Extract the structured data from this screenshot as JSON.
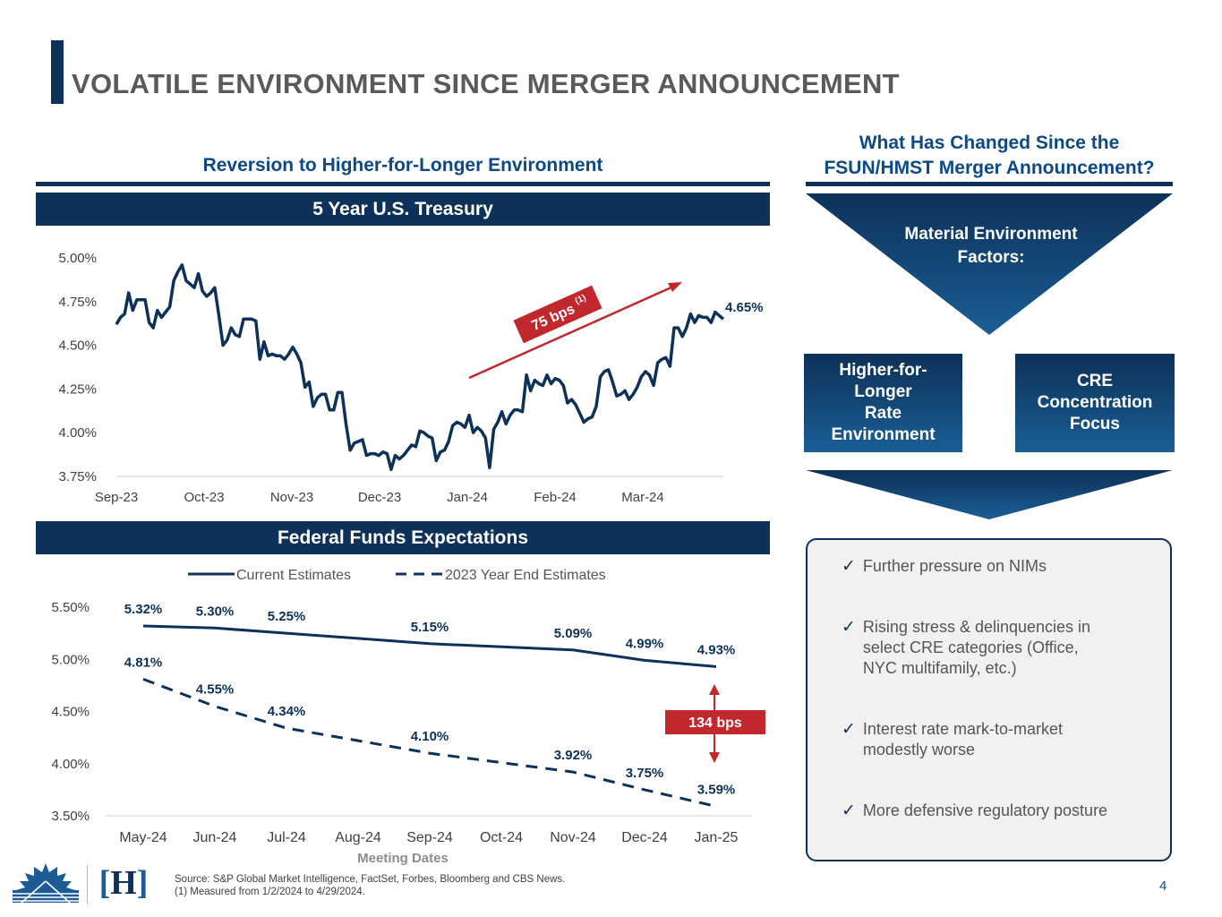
{
  "slide": {
    "title": "VOLATILE ENVIRONMENT SINCE MERGER ANNOUNCEMENT",
    "page_number": "4"
  },
  "left": {
    "heading": "Reversion to Higher-for-Longer Environment",
    "treasury_band": "5 Year U.S. Treasury",
    "fed_band": "Federal Funds Expectations",
    "annotation_bps": "75 bps",
    "annotation_sup": "(1)",
    "fed_delta_label": "134 bps"
  },
  "right": {
    "heading_line1": "What Has Changed Since the",
    "heading_line2": "FSUN/HMST Merger Announcement?",
    "funnel_line1": "Material Environment",
    "funnel_line2": "Factors:",
    "box_left": [
      "Higher-for-",
      "Longer",
      "Rate",
      "Environment"
    ],
    "box_right": [
      "CRE",
      "Concentration",
      "Focus"
    ],
    "bullets": [
      [
        "Further pressure on NIMs"
      ],
      [
        "Rising stress & delinquencies in",
        "select CRE categories (Office,",
        "NYC multifamily, etc.)"
      ],
      [
        "Interest rate mark-to-market",
        "modestly worse"
      ],
      [
        "More defensive regulatory posture"
      ]
    ],
    "check_glyph": "✓"
  },
  "footer": {
    "source_line1": "Source: S&P Global Market Intelligence, FactSet, Forbes, Bloomberg and CBS News.",
    "source_line2": "(1) Measured from 1/2/2024 to 4/29/2024.",
    "logo_h": "H"
  },
  "colors": {
    "navy": "#0d3158",
    "heading_blue": "#0d4a85",
    "accent_red": "#c0282d",
    "gray_title": "#5a5a5a"
  },
  "chart_data": [
    {
      "type": "line",
      "title": "5 Year U.S. Treasury",
      "x_tick_labels": [
        "Sep-23",
        "Oct-23",
        "Nov-23",
        "Dec-23",
        "Jan-24",
        "Feb-24",
        "Mar-24"
      ],
      "y_tick_labels": [
        "3.75%",
        "4.00%",
        "4.25%",
        "4.50%",
        "4.75%",
        "5.00%"
      ],
      "ylim": [
        3.75,
        5.0
      ],
      "end_label": "4.65%",
      "series": [
        {
          "name": "5 Year U.S. Treasury",
          "values": [
            4.62,
            4.66,
            4.68,
            4.8,
            4.7,
            4.76,
            4.76,
            4.76,
            4.63,
            4.6,
            4.7,
            4.66,
            4.69,
            4.72,
            4.87,
            4.92,
            4.96,
            4.87,
            4.85,
            4.83,
            4.91,
            4.81,
            4.78,
            4.8,
            4.83,
            4.67,
            4.5,
            4.53,
            4.6,
            4.56,
            4.55,
            4.65,
            4.65,
            4.65,
            4.64,
            4.42,
            4.52,
            4.44,
            4.45,
            4.44,
            4.44,
            4.42,
            4.45,
            4.49,
            4.45,
            4.4,
            4.26,
            4.29,
            4.15,
            4.2,
            4.22,
            4.22,
            4.13,
            4.13,
            4.23,
            4.23,
            4.05,
            3.9,
            3.94,
            3.95,
            3.96,
            3.87,
            3.88,
            3.88,
            3.87,
            3.89,
            3.88,
            3.79,
            3.87,
            3.85,
            3.87,
            3.9,
            3.93,
            3.92,
            4.01,
            4.0,
            3.98,
            3.97,
            3.84,
            3.89,
            3.9,
            3.95,
            4.04,
            4.06,
            4.05,
            4.03,
            4.1,
            4.0,
            4.03,
            4.01,
            3.97,
            3.8,
            4.02,
            4.06,
            4.12,
            4.05,
            4.1,
            4.13,
            4.13,
            4.12,
            4.33,
            4.24,
            4.3,
            4.28,
            4.27,
            4.33,
            4.28,
            4.31,
            4.3,
            4.27,
            4.17,
            4.19,
            4.16,
            4.11,
            4.06,
            4.08,
            4.09,
            4.15,
            4.32,
            4.35,
            4.36,
            4.29,
            4.21,
            4.22,
            4.24,
            4.19,
            4.22,
            4.26,
            4.32,
            4.35,
            4.33,
            4.27,
            4.4,
            4.42,
            4.43,
            4.38,
            4.6,
            4.6,
            4.55,
            4.6,
            4.68,
            4.63,
            4.67,
            4.66,
            4.66,
            4.63,
            4.69,
            4.67,
            4.65
          ]
        }
      ]
    },
    {
      "type": "line",
      "title": "Federal Funds Expectations",
      "xlabel": "Meeting Dates",
      "categories": [
        "May-24",
        "Jun-24",
        "Jul-24",
        "Aug-24",
        "Sep-24",
        "Oct-24",
        "Nov-24",
        "Dec-24",
        "Jan-25"
      ],
      "y_tick_labels": [
        "3.50%",
        "4.00%",
        "4.50%",
        "5.00%",
        "5.50%"
      ],
      "ylim": [
        3.5,
        5.5
      ],
      "legend": [
        "Current Estimates",
        "2023 Year End Estimates"
      ],
      "legend_position": "top",
      "series": [
        {
          "name": "Current Estimates",
          "style": "solid",
          "values": [
            5.32,
            5.3,
            5.25,
            5.2,
            5.15,
            5.12,
            5.09,
            4.99,
            4.93
          ],
          "labels": [
            "5.32%",
            "5.30%",
            "5.25%",
            "",
            "5.15%",
            "",
            "5.09%",
            "4.99%",
            "4.93%"
          ]
        },
        {
          "name": "2023 Year End Estimates",
          "style": "dashed",
          "values": [
            4.81,
            4.55,
            4.34,
            4.22,
            4.1,
            4.01,
            3.92,
            3.75,
            3.59
          ],
          "labels": [
            "4.81%",
            "4.55%",
            "4.34%",
            "",
            "4.10%",
            "",
            "3.92%",
            "3.75%",
            "3.59%"
          ]
        }
      ]
    }
  ]
}
